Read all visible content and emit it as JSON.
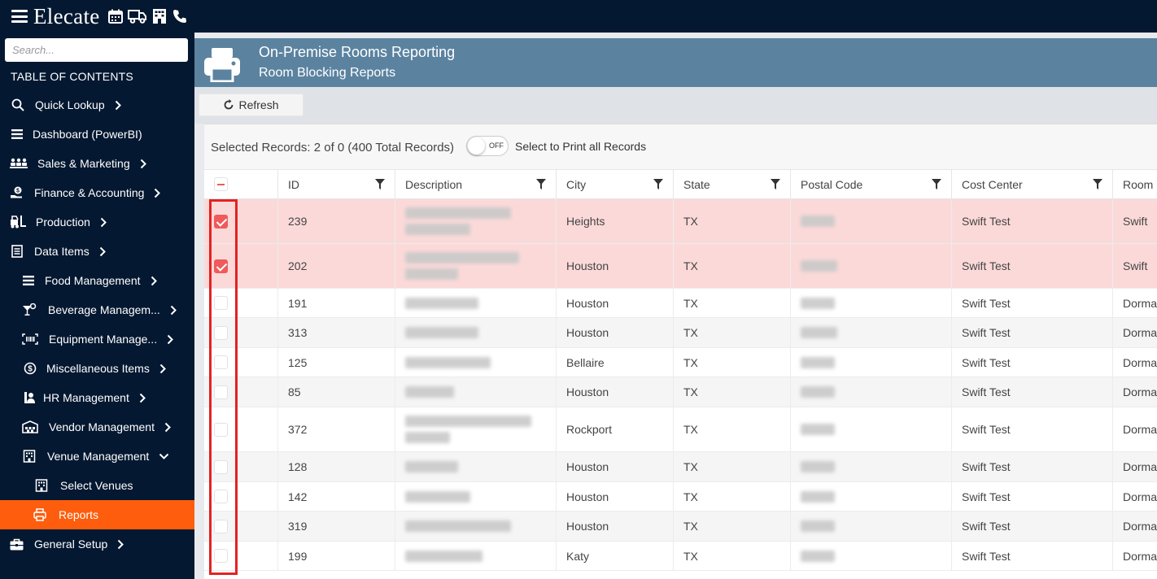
{
  "app": {
    "logo": "Elecate",
    "top_icons": [
      "calendar-icon",
      "truck-icon",
      "building-icon",
      "phone-icon"
    ]
  },
  "sidebar": {
    "search_placeholder": "Search...",
    "toc_title": "TABLE OF CONTENTS",
    "items": [
      {
        "label": "Quick Lookup",
        "icon": "search-icon",
        "chevron": "right"
      },
      {
        "label": "Dashboard (PowerBI)",
        "icon": "bars-icon",
        "chevron": "none"
      },
      {
        "label": "Sales & Marketing",
        "icon": "people-icon",
        "chevron": "right"
      },
      {
        "label": "Finance & Accounting",
        "icon": "money-hand-icon",
        "chevron": "right"
      },
      {
        "label": "Production",
        "icon": "forklift-icon",
        "chevron": "right"
      },
      {
        "label": "Data Items",
        "icon": "list-icon",
        "chevron": "right"
      },
      {
        "label": "Food Management",
        "icon": "bars-icon",
        "chevron": "right"
      },
      {
        "label": "Beverage Managem...",
        "icon": "cocktail-icon",
        "chevron": "right"
      },
      {
        "label": "Equipment Manage...",
        "icon": "barcode-icon",
        "chevron": "right"
      },
      {
        "label": "Miscellaneous Items",
        "icon": "dollar-circle-icon",
        "chevron": "right"
      },
      {
        "label": "HR Management",
        "icon": "person-tag-icon",
        "chevron": "right"
      },
      {
        "label": "Vendor Management",
        "icon": "warehouse-icon",
        "chevron": "right"
      },
      {
        "label": "Venue Management",
        "icon": "building-icon",
        "chevron": "down"
      },
      {
        "label": "Select Venues",
        "icon": "building-icon",
        "chevron": "none"
      },
      {
        "label": "Reports",
        "icon": "printer-icon",
        "chevron": "none",
        "active": true
      },
      {
        "label": "General Setup",
        "icon": "briefcase-icon",
        "chevron": "right"
      }
    ]
  },
  "banner": {
    "title": "On-Premise Rooms Reporting",
    "subtitle": "Room Blocking Reports"
  },
  "toolbar": {
    "refresh_label": "Refresh"
  },
  "selection": {
    "info": "Selected Records: 2 of 0 (400 Total Records)",
    "toggle_text": "OFF",
    "toggle_label": "Select to Print all Records"
  },
  "grid": {
    "columns": [
      "ID",
      "Description",
      "City",
      "State",
      "Postal Code",
      "Cost Center",
      "Room I"
    ],
    "rows": [
      {
        "checked": true,
        "id": "239",
        "city": "Heights",
        "state": "TX",
        "cost_center": "Swift Test",
        "room": "Swift"
      },
      {
        "checked": true,
        "id": "202",
        "city": "Houston",
        "state": "TX",
        "cost_center": "Swift Test",
        "room": "Swift"
      },
      {
        "checked": false,
        "id": "191",
        "city": "Houston",
        "state": "TX",
        "cost_center": "Swift Test",
        "room": "Dorma"
      },
      {
        "checked": false,
        "id": "313",
        "city": "Houston",
        "state": "TX",
        "cost_center": "Swift Test",
        "room": "Dorma"
      },
      {
        "checked": false,
        "id": "125",
        "city": "Bellaire",
        "state": "TX",
        "cost_center": "Swift Test",
        "room": "Dorma"
      },
      {
        "checked": false,
        "id": "85",
        "city": "Houston",
        "state": "TX",
        "cost_center": "Swift Test",
        "room": "Dorma"
      },
      {
        "checked": false,
        "id": "372",
        "city": "Rockport",
        "state": "TX",
        "cost_center": "Swift Test",
        "room": "Dorma"
      },
      {
        "checked": false,
        "id": "128",
        "city": "Houston",
        "state": "TX",
        "cost_center": "Swift Test",
        "room": "Dorma"
      },
      {
        "checked": false,
        "id": "142",
        "city": "Houston",
        "state": "TX",
        "cost_center": "Swift Test",
        "room": "Dorma"
      },
      {
        "checked": false,
        "id": "319",
        "city": "Houston",
        "state": "TX",
        "cost_center": "Swift Test",
        "room": "Dorma"
      },
      {
        "checked": false,
        "id": "199",
        "city": "Katy",
        "state": "TX",
        "cost_center": "Swift Test",
        "room": "Dorma"
      }
    ]
  },
  "colors": {
    "nav_bg": "#051831",
    "active_item": "#fd5d0d",
    "banner_bg": "#5b83a0",
    "selected_row": "#fcd9d9",
    "checkbox_checked": "#ef5a5a",
    "highlight_box": "#e32222"
  }
}
